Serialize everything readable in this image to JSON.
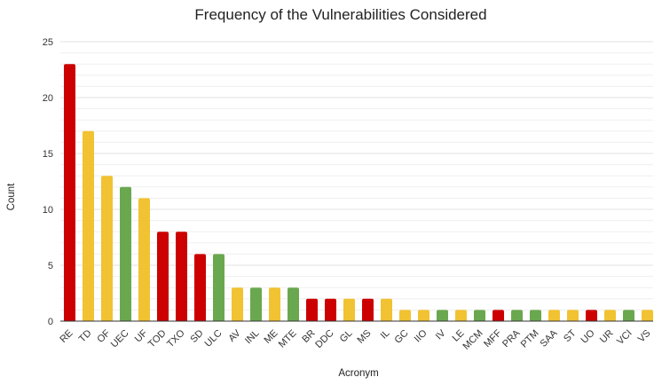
{
  "chart_data": {
    "type": "bar",
    "title": "Frequency of the Vulnerabilities Considered",
    "xlabel": "Acronym",
    "ylabel": "Count",
    "ylim": [
      0,
      25
    ],
    "yticks": [
      0,
      5,
      10,
      15,
      20,
      25
    ],
    "grid": true,
    "legend": "none",
    "categories": [
      "RE",
      "TD",
      "OF",
      "UEC",
      "UF",
      "TOD",
      "TXO",
      "SD",
      "ULC",
      "AV",
      "INL",
      "ME",
      "MTE",
      "BR",
      "DDC",
      "GL",
      "MS",
      "IL",
      "GC",
      "IIO",
      "IV",
      "LE",
      "MCM",
      "MFF",
      "PRA",
      "PTM",
      "SAA",
      "ST",
      "UO",
      "UR",
      "VCI",
      "VS"
    ],
    "values": [
      23,
      17,
      13,
      12,
      11,
      8,
      8,
      6,
      6,
      3,
      3,
      3,
      3,
      2,
      2,
      2,
      2,
      2,
      1,
      1,
      1,
      1,
      1,
      1,
      1,
      1,
      1,
      1,
      1,
      1,
      1,
      1
    ],
    "bar_colors": [
      "#cc0000",
      "#f1c232",
      "#f1c232",
      "#6aa84f",
      "#f1c232",
      "#cc0000",
      "#cc0000",
      "#cc0000",
      "#6aa84f",
      "#f1c232",
      "#6aa84f",
      "#f1c232",
      "#6aa84f",
      "#cc0000",
      "#cc0000",
      "#f1c232",
      "#cc0000",
      "#f1c232",
      "#f1c232",
      "#f1c232",
      "#6aa84f",
      "#f1c232",
      "#6aa84f",
      "#cc0000",
      "#6aa84f",
      "#6aa84f",
      "#f1c232",
      "#f1c232",
      "#cc0000",
      "#f1c232",
      "#6aa84f",
      "#f1c232"
    ],
    "colors": {
      "red": "#cc0000",
      "yellow": "#f1c232",
      "green": "#6aa84f",
      "gridline": "#e0e0e0",
      "minor_gridline": "#efefef",
      "axis": "#333333"
    }
  }
}
